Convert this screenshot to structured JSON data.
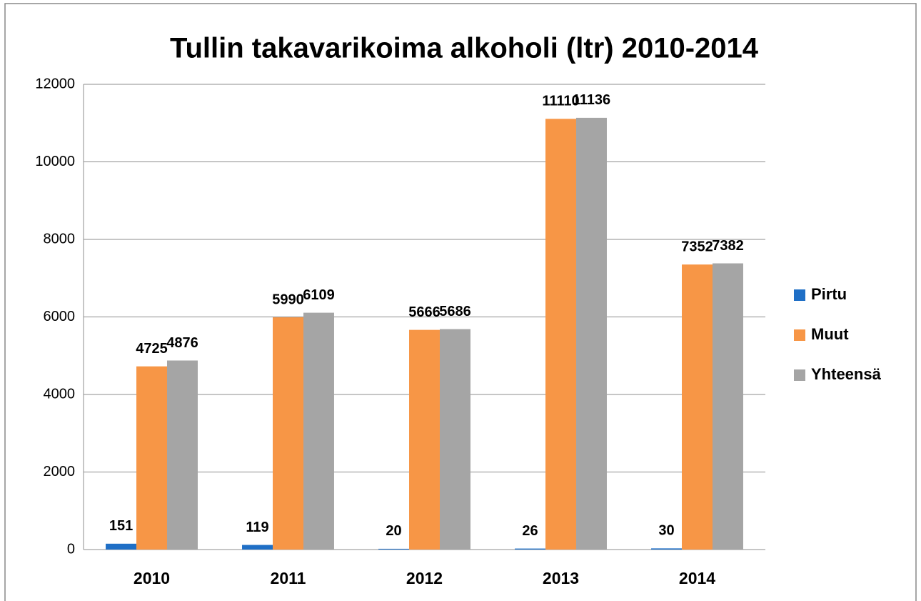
{
  "chart_data": {
    "type": "bar",
    "title": "Tullin takavarikoima alkoholi (ltr) 2010-2014",
    "categories": [
      "2010",
      "2011",
      "2012",
      "2013",
      "2014"
    ],
    "series": [
      {
        "name": "Pirtu",
        "color": "#1f6fc6",
        "values": [
          151,
          119,
          20,
          26,
          30
        ]
      },
      {
        "name": "Muut",
        "color": "#f79646",
        "values": [
          4725,
          5990,
          5666,
          11110,
          7352
        ]
      },
      {
        "name": "Yhteensä",
        "color": "#a5a5a5",
        "values": [
          4876,
          6109,
          5686,
          11136,
          7382
        ]
      }
    ],
    "ylim": [
      0,
      12000
    ],
    "yticks": [
      0,
      2000,
      4000,
      6000,
      8000,
      10000,
      12000
    ],
    "grid": true,
    "legend": "right"
  }
}
